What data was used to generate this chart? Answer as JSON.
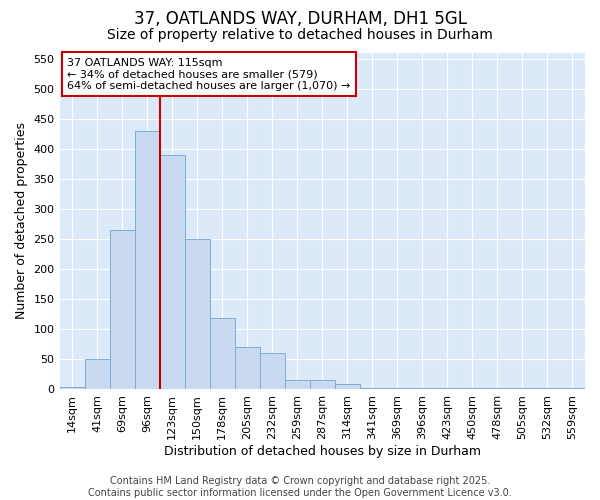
{
  "title": "37, OATLANDS WAY, DURHAM, DH1 5GL",
  "subtitle": "Size of property relative to detached houses in Durham",
  "xlabel": "Distribution of detached houses by size in Durham",
  "ylabel": "Number of detached properties",
  "categories": [
    "14sqm",
    "41sqm",
    "69sqm",
    "96sqm",
    "123sqm",
    "150sqm",
    "178sqm",
    "205sqm",
    "232sqm",
    "259sqm",
    "287sqm",
    "314sqm",
    "341sqm",
    "369sqm",
    "396sqm",
    "423sqm",
    "450sqm",
    "478sqm",
    "505sqm",
    "532sqm",
    "559sqm"
  ],
  "values": [
    3,
    50,
    265,
    430,
    390,
    250,
    118,
    70,
    60,
    15,
    15,
    8,
    1,
    1,
    1,
    1,
    1,
    1,
    1,
    1,
    1
  ],
  "bar_color": "#c8d9f0",
  "bar_edge_color": "#7bafd4",
  "vline_x_index": 4,
  "vline_color": "#cc0000",
  "annotation_text": "37 OATLANDS WAY: 115sqm\n← 34% of detached houses are smaller (579)\n64% of semi-detached houses are larger (1,070) →",
  "annotation_box_facecolor": "#ffffff",
  "annotation_box_edgecolor": "#cc0000",
  "ylim": [
    0,
    560
  ],
  "yticks": [
    0,
    50,
    100,
    150,
    200,
    250,
    300,
    350,
    400,
    450,
    500,
    550
  ],
  "footer": "Contains HM Land Registry data © Crown copyright and database right 2025.\nContains public sector information licensed under the Open Government Licence v3.0.",
  "plot_bg_color": "#dce9f8",
  "fig_bg_color": "#ffffff",
  "title_fontsize": 12,
  "subtitle_fontsize": 10,
  "label_fontsize": 9,
  "tick_fontsize": 8,
  "footer_fontsize": 7,
  "annot_fontsize": 8
}
